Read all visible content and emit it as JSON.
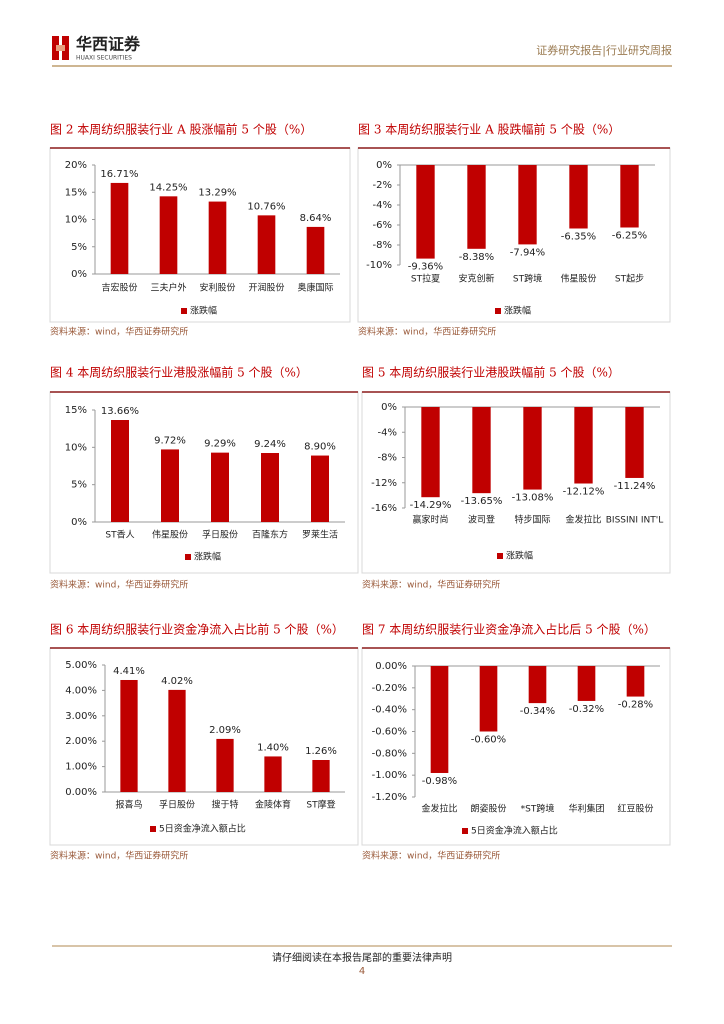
{
  "header": {
    "logo_cn": "华西证券",
    "logo_en": "HUAXI SECURITIES",
    "report_type": "证券研究报告|行业研究周报"
  },
  "footer": {
    "disclaimer": "请仔细阅读在本报告尾部的重要法律声明",
    "page": 4
  },
  "chart_data": [
    {
      "type": "bar",
      "title": "图 2 本周纺织服装行业 A 股涨幅前 5 个股（%）",
      "categories": [
        "吉宏股份",
        "三夫户外",
        "安利股份",
        "开润股份",
        "奥康国际"
      ],
      "series": [
        {
          "name": "涨跌幅",
          "color": "#c00000",
          "values": [
            16.71,
            14.25,
            13.29,
            10.76,
            8.64
          ],
          "value_labels": [
            "16.71%",
            "14.25%",
            "13.29%",
            "10.76%",
            "8.64%"
          ]
        }
      ],
      "ylim": [
        0,
        20
      ],
      "yticks": [
        {
          "value": 0,
          "label": "0%"
        },
        {
          "value": 5,
          "label": "5%"
        },
        {
          "value": 10,
          "label": "10%"
        },
        {
          "value": 15,
          "label": "15%"
        },
        {
          "value": 20,
          "label": "20%"
        }
      ],
      "source": "资料来源：wind，华西证券研究所"
    },
    {
      "type": "bar",
      "title": "图 3 本周纺织服装行业 A 股跌幅前 5 个股（%）",
      "categories": [
        "ST拉夏",
        "安克创新",
        "ST跨境",
        "伟星股份",
        "ST起步"
      ],
      "series": [
        {
          "name": "涨跌幅",
          "color": "#c00000",
          "values": [
            -9.36,
            -8.38,
            -7.94,
            -6.35,
            -6.25
          ],
          "value_labels": [
            "-9.36%",
            "-8.38%",
            "-7.94%",
            "-6.35%",
            "-6.25%"
          ]
        }
      ],
      "ylim": [
        -10,
        0
      ],
      "yticks": [
        {
          "value": 0,
          "label": "0%"
        },
        {
          "value": -2,
          "label": "-2%"
        },
        {
          "value": -4,
          "label": "-4%"
        },
        {
          "value": -6,
          "label": "-6%"
        },
        {
          "value": -8,
          "label": "-8%"
        },
        {
          "value": -10,
          "label": "-10%"
        }
      ],
      "source": "资料来源：wind，华西证券研究所"
    },
    {
      "type": "bar",
      "title": "图 4 本周纺织服装行业港股涨幅前 5 个股（%）",
      "categories": [
        "ST香人",
        "伟星股份",
        "孚日股份",
        "百隆东方",
        "罗莱生活"
      ],
      "series": [
        {
          "name": "涨跌幅",
          "color": "#c00000",
          "values": [
            13.66,
            9.72,
            9.29,
            9.24,
            8.9
          ],
          "value_labels": [
            "13.66%",
            "9.72%",
            "9.29%",
            "9.24%",
            "8.90%"
          ]
        }
      ],
      "ylim": [
        0,
        15
      ],
      "yticks": [
        {
          "value": 0,
          "label": "0%"
        },
        {
          "value": 5,
          "label": "5%"
        },
        {
          "value": 10,
          "label": "10%"
        },
        {
          "value": 15,
          "label": "15%"
        }
      ],
      "source": "资料来源：wind，华西证券研究所"
    },
    {
      "type": "bar",
      "title": "图 5 本周纺织服装行业港股跌幅前 5 个股（%）",
      "categories": [
        "赢家时尚",
        "波司登",
        "特步国际",
        "金发拉比",
        "BISSINI INT'L"
      ],
      "series": [
        {
          "name": "涨跌幅",
          "color": "#c00000",
          "values": [
            -14.29,
            -13.65,
            -13.08,
            -12.12,
            -11.24
          ],
          "value_labels": [
            "-14.29%",
            "-13.65%",
            "-13.08%",
            "-12.12%",
            "-11.24%"
          ]
        }
      ],
      "ylim": [
        -16,
        0
      ],
      "yticks": [
        {
          "value": 0,
          "label": "0%"
        },
        {
          "value": -4,
          "label": "-4%"
        },
        {
          "value": -8,
          "label": "-8%"
        },
        {
          "value": -12,
          "label": "-12%"
        },
        {
          "value": -16,
          "label": "-16%"
        }
      ],
      "source": "资料来源：wind，华西证券研究所"
    },
    {
      "type": "bar",
      "title": "图 6 本周纺织服装行业资金净流入占比前 5 个股（%）",
      "categories": [
        "报喜鸟",
        "孚日股份",
        "搜于特",
        "金陵体育",
        "ST摩登"
      ],
      "series": [
        {
          "name": "5日资金净流入额占比",
          "color": "#c00000",
          "values": [
            4.41,
            4.02,
            2.09,
            1.4,
            1.26
          ],
          "value_labels": [
            "4.41%",
            "4.02%",
            "2.09%",
            "1.40%",
            "1.26%"
          ]
        }
      ],
      "ylim": [
        0,
        5
      ],
      "yticks": [
        {
          "value": 0,
          "label": "0.00%"
        },
        {
          "value": 1,
          "label": "1.00%"
        },
        {
          "value": 2,
          "label": "2.00%"
        },
        {
          "value": 3,
          "label": "3.00%"
        },
        {
          "value": 4,
          "label": "4.00%"
        },
        {
          "value": 5,
          "label": "5.00%"
        }
      ],
      "source": "资料来源：wind，华西证券研究所"
    },
    {
      "type": "bar",
      "title": "图 7 本周纺织服装行业资金净流入占比后 5 个股（%）",
      "categories": [
        "金发拉比",
        "朗姿股份",
        "*ST跨境",
        "华利集团",
        "红豆股份"
      ],
      "series": [
        {
          "name": "5日资金净流入额占比",
          "color": "#c00000",
          "values": [
            -0.98,
            -0.6,
            -0.34,
            -0.32,
            -0.28
          ],
          "value_labels": [
            "-0.98%",
            "-0.60%",
            "-0.34%",
            "-0.32%",
            "-0.28%"
          ]
        }
      ],
      "ylim": [
        -1.2,
        0
      ],
      "yticks": [
        {
          "value": 0,
          "label": "0.00%"
        },
        {
          "value": -0.2,
          "label": "-0.20%"
        },
        {
          "value": -0.4,
          "label": "-0.40%"
        },
        {
          "value": -0.6,
          "label": "-0.60%"
        },
        {
          "value": -0.8,
          "label": "-0.80%"
        },
        {
          "value": -1,
          "label": "-1.00%"
        },
        {
          "value": -1.2,
          "label": "-1.20%"
        }
      ],
      "source": "资料来源：wind，华西证券研究所"
    }
  ]
}
